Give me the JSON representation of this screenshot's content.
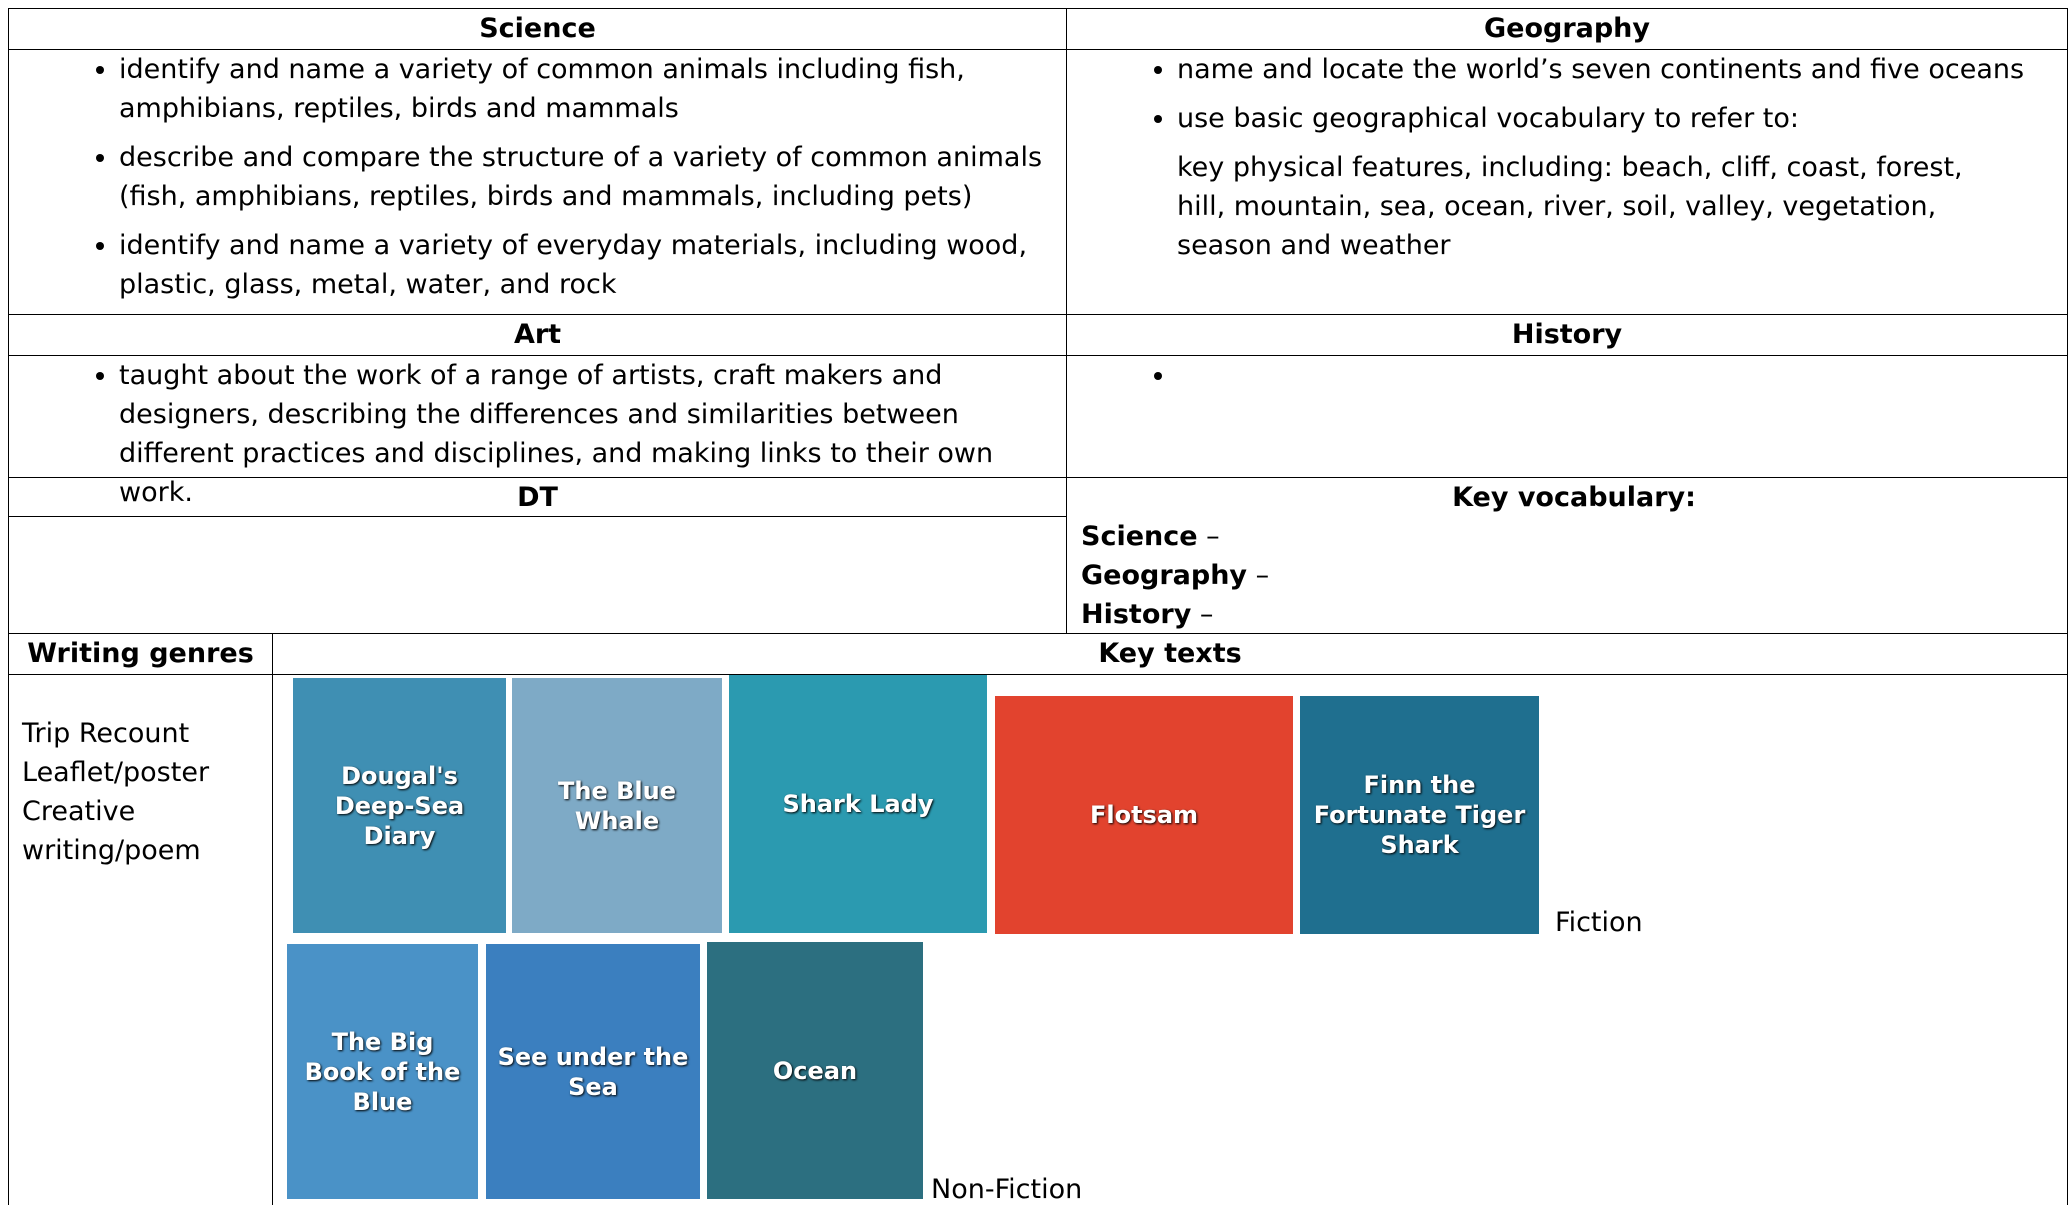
{
  "science": {
    "title": "Science",
    "bullets": [
      "identify and name a variety of common animals including fish, amphibians, reptiles, birds and mammals",
      "describe and compare the structure of a variety of common animals (fish, amphibians, reptiles, birds and mammals, including pets)",
      "identify and name a variety of everyday materials, including wood, plastic, glass, metal, water, and rock"
    ]
  },
  "geography": {
    "title": "Geography",
    "bullets": [
      "name and locate the world’s seven continents and five oceans",
      "use basic geographical vocabulary to refer to:"
    ],
    "detail": "key physical features, including: beach, cliff, coast, forest, hill, mountain, sea, ocean, river, soil, valley, vegetation, season and weather"
  },
  "art": {
    "title": "Art",
    "bullets": [
      "taught about the work of a range of artists, craft makers and designers, describing the differences and similarities between different practices and disciplines, and making links to their own work."
    ]
  },
  "history": {
    "title": "History"
  },
  "dt": {
    "title": "DT"
  },
  "key_vocabulary": {
    "title": "Key vocabulary:",
    "items": [
      {
        "label": "Science",
        "suffix": " –"
      },
      {
        "label": "Geography",
        "suffix": " –"
      },
      {
        "label": "History",
        "suffix": " –"
      }
    ]
  },
  "writing_genres": {
    "title": "Writing genres",
    "items": [
      "Trip Recount",
      "Leaflet/poster",
      "Creative writing/poem"
    ]
  },
  "key_texts": {
    "title": "Key texts",
    "fiction_label": "Fiction",
    "non_fiction_label": "Non-Fiction",
    "fiction": [
      "Dougal's Deep-Sea Diary",
      "The Blue Whale",
      "Shark Lady",
      "Flotsam",
      "Finn the Fortunate Tiger Shark"
    ],
    "non_fiction": [
      "The Big Book of the Blue",
      "See under the Sea",
      "Ocean"
    ]
  }
}
